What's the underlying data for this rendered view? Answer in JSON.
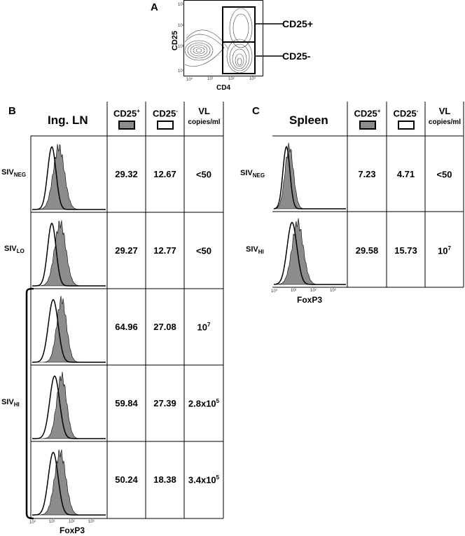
{
  "panel_a": {
    "letter": "A",
    "ylabel": "CD25",
    "xlabel": "CD4",
    "gate_high": "CD25+",
    "gate_low": "CD25-",
    "x_ticks": [
      "10⁰",
      "10¹",
      "10²",
      "10³"
    ],
    "y_ticks": [
      "10⁰",
      "10¹",
      "10²",
      "10³"
    ]
  },
  "panel_b": {
    "letter": "B",
    "title": "Ing. LN",
    "headers": {
      "pos": "CD25",
      "pos_sup": "+",
      "neg": "CD25",
      "neg_sup": "-",
      "vl": "VL",
      "vl_unit": "copies/ml"
    },
    "xlabel": "FoxP3",
    "x_ticks": [
      "10⁰",
      "10¹",
      "10²",
      "10³"
    ],
    "group_label": {
      "main": "SIV",
      "sub": "HI"
    },
    "rows": [
      {
        "label": "SIV",
        "sub": "NEG",
        "pos": "29.32",
        "neg": "12.67",
        "vl": "<50",
        "vl_sup": ""
      },
      {
        "label": "SIV",
        "sub": "LO",
        "pos": "29.27",
        "neg": "12.77",
        "vl": "<50",
        "vl_sup": ""
      },
      {
        "label": "",
        "sub": "",
        "pos": "64.96",
        "neg": "27.08",
        "vl": "10",
        "vl_sup": "7"
      },
      {
        "label": "",
        "sub": "",
        "pos": "59.84",
        "neg": "27.39",
        "vl": "2.8x10",
        "vl_sup": "5"
      },
      {
        "label": "",
        "sub": "",
        "pos": "50.24",
        "neg": "18.38",
        "vl": "3.4x10",
        "vl_sup": "5"
      }
    ]
  },
  "panel_c": {
    "letter": "C",
    "title": "Spleen",
    "headers": {
      "pos": "CD25",
      "pos_sup": "+",
      "neg": "CD25",
      "neg_sup": "-",
      "vl": "VL",
      "vl_unit": "copies/ml"
    },
    "xlabel": "FoxP3",
    "x_ticks": [
      "10⁰",
      "10¹",
      "10²",
      "10³"
    ],
    "rows": [
      {
        "label": "SIV",
        "sub": "NEG",
        "pos": "7.23",
        "neg": "4.71",
        "vl": "<50",
        "vl_sup": ""
      },
      {
        "label": "SIV",
        "sub": "HI",
        "pos": "29.58",
        "neg": "15.73",
        "vl": "10",
        "vl_sup": "7"
      }
    ]
  },
  "colors": {
    "filled_hist": "#8c8c8c",
    "line": "#000000"
  }
}
